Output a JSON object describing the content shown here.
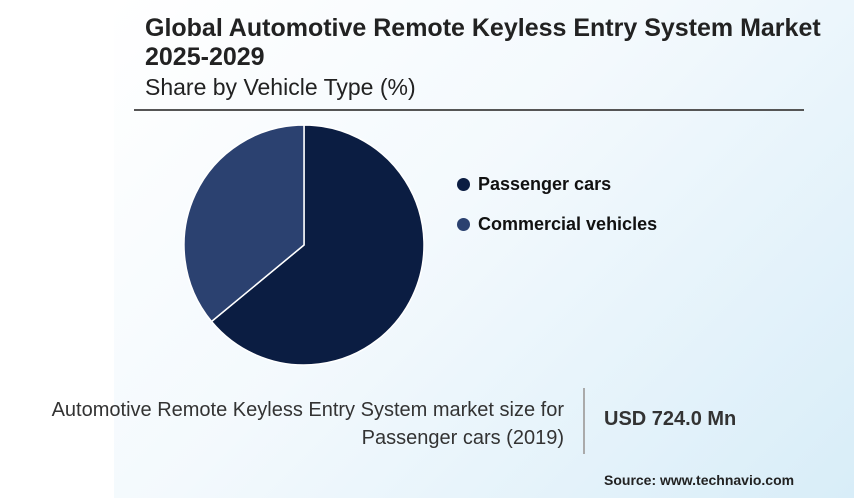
{
  "header": {
    "title": "Global Automotive Remote Keyless Entry System Market 2025-2029",
    "subtitle": "Share by Vehicle Type (%)"
  },
  "chart_data": {
    "type": "pie",
    "title": "Global Automotive Remote Keyless Entry System Market 2025-2029",
    "subtitle": "Share by Vehicle Type (%)",
    "categories": [
      "Passenger cars",
      "Commercial vehicles"
    ],
    "values": [
      64,
      36
    ],
    "colors": [
      "#0b1d42",
      "#2b4170"
    ],
    "legend_position": "right"
  },
  "footer": {
    "market_label_line1": "Automotive Remote Keyless Entry System market size for",
    "market_label_line2": "Passenger cars (2019)",
    "market_value": "USD 724.0 Mn",
    "source": "Source: www.technavio.com"
  }
}
